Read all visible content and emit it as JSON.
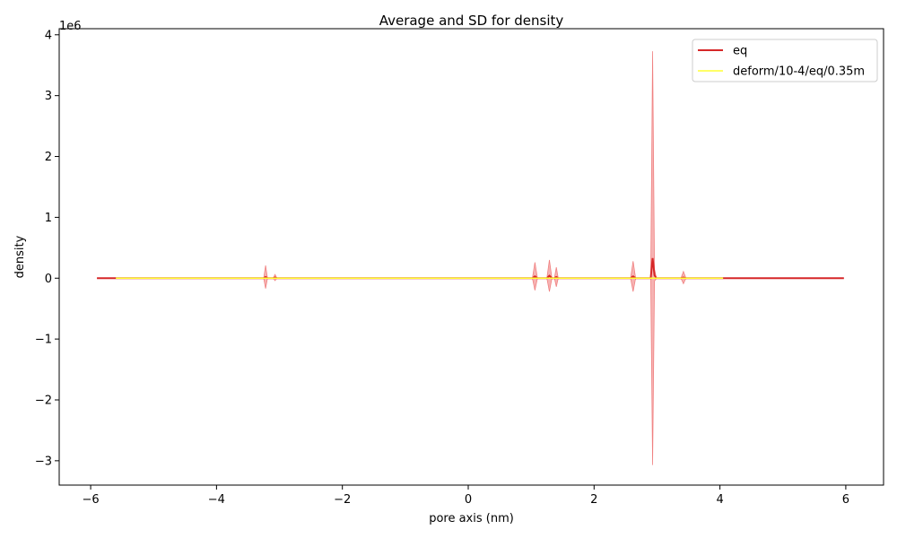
{
  "chart_data": {
    "type": "line",
    "title": "Average and SD for density",
    "xlabel": "pore axis (nm)",
    "ylabel": "density",
    "y_scale_label": "1e6",
    "xlim": [
      -6.5,
      6.6
    ],
    "ylim": [
      -3.4,
      4.1
    ],
    "x_ticks": [
      -6,
      -4,
      -2,
      0,
      2,
      4,
      6
    ],
    "x_tick_labels": [
      "−6",
      "−4",
      "−2",
      "0",
      "2",
      "4",
      "6"
    ],
    "y_ticks": [
      -3,
      -2,
      -1,
      0,
      1,
      2,
      3,
      4
    ],
    "y_tick_labels": [
      "−3",
      "−2",
      "−1",
      "0",
      "1",
      "2",
      "3",
      "4"
    ],
    "legend_position": "top-right",
    "grid": false,
    "series": [
      {
        "name": "eq",
        "color": "#d62728",
        "band_color": "#f08080",
        "x": [
          -5.9,
          -3.25,
          -3.22,
          -3.19,
          -3.1,
          -3.07,
          -3.04,
          1.02,
          1.06,
          1.1,
          1.25,
          1.29,
          1.33,
          1.37,
          1.4,
          1.43,
          2.58,
          2.62,
          2.66,
          2.9,
          2.93,
          2.96,
          2.99,
          3.38,
          3.42,
          3.46,
          5.97
        ],
        "mean": [
          0,
          0,
          0.02,
          0,
          0,
          0.01,
          0,
          0,
          0.03,
          0,
          0,
          0.04,
          0,
          0,
          0.02,
          0,
          0,
          0.03,
          0,
          0,
          0.33,
          0.05,
          0,
          0,
          0.01,
          0,
          0
        ],
        "sd": [
          0,
          0,
          0.19,
          0,
          0,
          0.05,
          0,
          0,
          0.23,
          0,
          0,
          0.26,
          0,
          0,
          0.16,
          0,
          0,
          0.25,
          0,
          0,
          3.4,
          0.1,
          0,
          0,
          0.1,
          0,
          0
        ]
      },
      {
        "name": "deform/10-4/eq/0.35m",
        "color": "#ffff33",
        "band_color": "#ffff99",
        "x": [
          -5.6,
          4.05
        ],
        "mean": [
          0,
          0
        ],
        "sd": [
          0,
          0
        ]
      }
    ]
  }
}
